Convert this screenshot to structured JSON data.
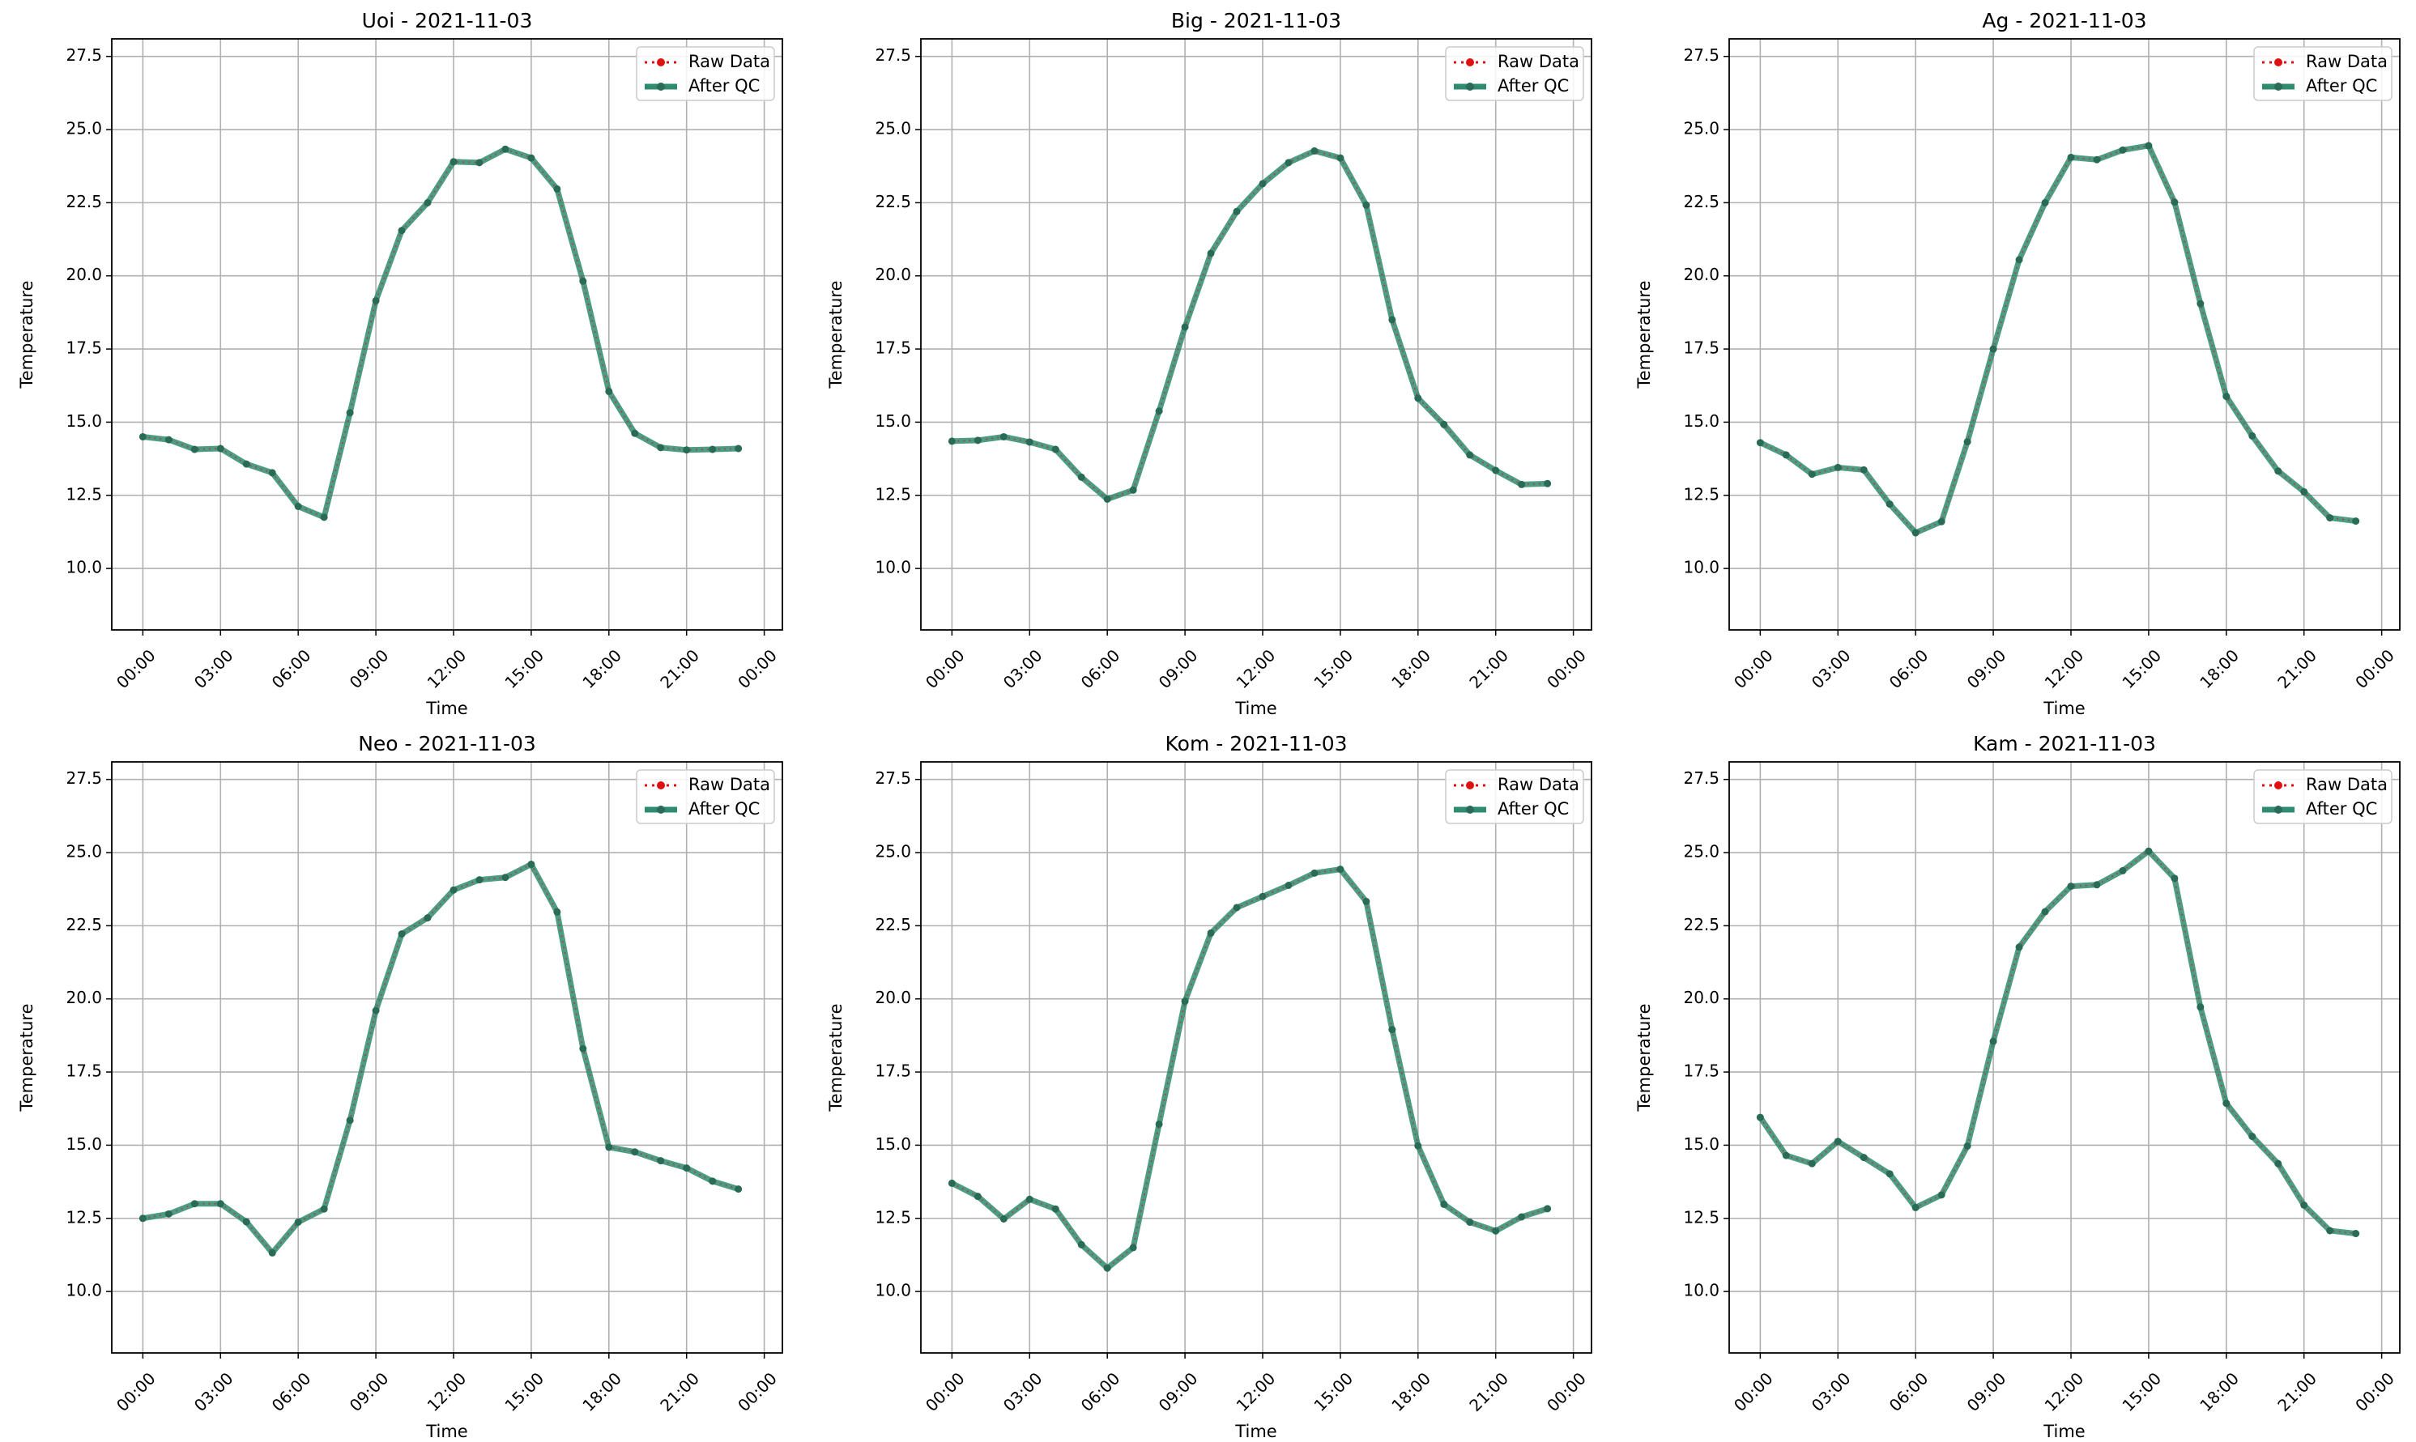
{
  "figure": {
    "background": "#ffffff"
  },
  "legend": {
    "raw_label": "Raw Data",
    "qc_label": "After QC",
    "raw_color": "#e01010",
    "qc_color": "#2e8b6f"
  },
  "chart_data": [
    {
      "type": "line",
      "title": "Uoi - 2021-11-03",
      "xlabel": "Time",
      "ylabel": "Temperature",
      "xticks": [
        "00:00",
        "03:00",
        "06:00",
        "09:00",
        "12:00",
        "15:00",
        "18:00",
        "21:00",
        "00:00"
      ],
      "yticks": [
        "10.0",
        "12.5",
        "15.0",
        "17.5",
        "20.0",
        "22.5",
        "25.0",
        "27.5"
      ],
      "ylim": [
        7.9,
        28.1
      ],
      "grid": true,
      "legend_position": "upper right",
      "x_hours": [
        0,
        1,
        2,
        3,
        4,
        5,
        6,
        7,
        8,
        9,
        10,
        11,
        12,
        13,
        14,
        15,
        16,
        17,
        18,
        19,
        20,
        21,
        22,
        23
      ],
      "series": [
        {
          "name": "Raw Data",
          "values": [
            14.5,
            14.4,
            14.07,
            14.1,
            13.57,
            13.27,
            12.12,
            11.75,
            15.32,
            19.15,
            21.55,
            22.5,
            23.9,
            23.87,
            24.33,
            24.03,
            22.97,
            19.82,
            16.05,
            14.62,
            14.13,
            14.05,
            14.07,
            14.1
          ]
        },
        {
          "name": "After QC",
          "values": [
            14.5,
            14.4,
            14.07,
            14.1,
            13.57,
            13.27,
            12.12,
            11.75,
            15.32,
            19.15,
            21.55,
            22.5,
            23.9,
            23.87,
            24.33,
            24.03,
            22.97,
            19.82,
            16.05,
            14.62,
            14.13,
            14.05,
            14.07,
            14.1
          ]
        }
      ]
    },
    {
      "type": "line",
      "title": "Big - 2021-11-03",
      "xlabel": "Time",
      "ylabel": "Temperature",
      "xticks": [
        "00:00",
        "03:00",
        "06:00",
        "09:00",
        "12:00",
        "15:00",
        "18:00",
        "21:00",
        "00:00"
      ],
      "yticks": [
        "10.0",
        "12.5",
        "15.0",
        "17.5",
        "20.0",
        "22.5",
        "25.0",
        "27.5"
      ],
      "ylim": [
        7.9,
        28.1
      ],
      "grid": true,
      "legend_position": "upper right",
      "x_hours": [
        0,
        1,
        2,
        3,
        4,
        5,
        6,
        7,
        8,
        9,
        10,
        11,
        12,
        13,
        14,
        15,
        16,
        17,
        18,
        19,
        20,
        21,
        22,
        23
      ],
      "series": [
        {
          "name": "Raw Data",
          "values": [
            14.35,
            14.38,
            14.5,
            14.32,
            14.07,
            13.12,
            12.37,
            12.68,
            15.38,
            18.25,
            20.77,
            22.2,
            23.15,
            23.87,
            24.27,
            24.03,
            22.42,
            18.5,
            15.82,
            14.92,
            13.88,
            13.35,
            12.87,
            12.9
          ]
        },
        {
          "name": "After QC",
          "values": [
            14.35,
            14.38,
            14.5,
            14.32,
            14.07,
            13.12,
            12.37,
            12.68,
            15.38,
            18.25,
            20.77,
            22.2,
            23.15,
            23.87,
            24.27,
            24.03,
            22.42,
            18.5,
            15.82,
            14.92,
            13.88,
            13.35,
            12.87,
            12.9
          ]
        }
      ]
    },
    {
      "type": "line",
      "title": "Ag - 2021-11-03",
      "xlabel": "Time",
      "ylabel": "Temperature",
      "xticks": [
        "00:00",
        "03:00",
        "06:00",
        "09:00",
        "12:00",
        "15:00",
        "18:00",
        "21:00",
        "00:00"
      ],
      "yticks": [
        "10.0",
        "12.5",
        "15.0",
        "17.5",
        "20.0",
        "22.5",
        "25.0",
        "27.5"
      ],
      "ylim": [
        7.9,
        28.1
      ],
      "grid": true,
      "legend_position": "upper right",
      "x_hours": [
        0,
        1,
        2,
        3,
        4,
        5,
        6,
        7,
        8,
        9,
        10,
        11,
        12,
        13,
        14,
        15,
        16,
        17,
        18,
        19,
        20,
        21,
        22,
        23
      ],
      "series": [
        {
          "name": "Raw Data",
          "values": [
            14.3,
            13.88,
            13.22,
            13.45,
            13.37,
            12.2,
            11.22,
            11.6,
            14.33,
            17.5,
            20.55,
            22.5,
            24.05,
            23.97,
            24.3,
            24.45,
            22.52,
            19.05,
            15.88,
            14.53,
            13.33,
            12.62,
            11.73,
            11.62
          ]
        },
        {
          "name": "After QC",
          "values": [
            14.3,
            13.88,
            13.22,
            13.45,
            13.37,
            12.2,
            11.22,
            11.6,
            14.33,
            17.5,
            20.55,
            22.5,
            24.05,
            23.97,
            24.3,
            24.45,
            22.52,
            19.05,
            15.88,
            14.53,
            13.33,
            12.62,
            11.73,
            11.62
          ]
        }
      ]
    },
    {
      "type": "line",
      "title": "Neo - 2021-11-03",
      "xlabel": "Time",
      "ylabel": "Temperature",
      "xticks": [
        "00:00",
        "03:00",
        "06:00",
        "09:00",
        "12:00",
        "15:00",
        "18:00",
        "21:00",
        "00:00"
      ],
      "yticks": [
        "10.0",
        "12.5",
        "15.0",
        "17.5",
        "20.0",
        "22.5",
        "25.0",
        "27.5"
      ],
      "ylim": [
        7.9,
        28.1
      ],
      "grid": true,
      "legend_position": "upper right",
      "x_hours": [
        0,
        1,
        2,
        3,
        4,
        5,
        6,
        7,
        8,
        9,
        10,
        11,
        12,
        13,
        14,
        15,
        16,
        17,
        18,
        19,
        20,
        21,
        22,
        23
      ],
      "series": [
        {
          "name": "Raw Data",
          "values": [
            12.5,
            12.65,
            13.0,
            13.0,
            12.38,
            11.32,
            12.37,
            12.82,
            15.85,
            19.6,
            22.22,
            22.77,
            23.72,
            24.07,
            24.15,
            24.6,
            22.97,
            18.3,
            14.93,
            14.77,
            14.47,
            14.22,
            13.77,
            13.5
          ]
        },
        {
          "name": "After QC",
          "values": [
            12.5,
            12.65,
            13.0,
            13.0,
            12.38,
            11.32,
            12.37,
            12.82,
            15.85,
            19.6,
            22.22,
            22.77,
            23.72,
            24.07,
            24.15,
            24.6,
            22.97,
            18.3,
            14.93,
            14.77,
            14.47,
            14.22,
            13.77,
            13.5
          ]
        }
      ]
    },
    {
      "type": "line",
      "title": "Kom - 2021-11-03",
      "xlabel": "Time",
      "ylabel": "Temperature",
      "xticks": [
        "00:00",
        "03:00",
        "06:00",
        "09:00",
        "12:00",
        "15:00",
        "18:00",
        "21:00",
        "00:00"
      ],
      "yticks": [
        "10.0",
        "12.5",
        "15.0",
        "17.5",
        "20.0",
        "22.5",
        "25.0",
        "27.5"
      ],
      "ylim": [
        7.9,
        28.1
      ],
      "grid": true,
      "legend_position": "upper right",
      "x_hours": [
        0,
        1,
        2,
        3,
        4,
        5,
        6,
        7,
        8,
        9,
        10,
        11,
        12,
        13,
        14,
        15,
        16,
        17,
        18,
        19,
        20,
        21,
        22,
        23
      ],
      "series": [
        {
          "name": "Raw Data",
          "values": [
            13.7,
            13.25,
            12.48,
            13.15,
            12.82,
            11.6,
            10.8,
            11.5,
            15.72,
            19.92,
            22.25,
            23.12,
            23.5,
            23.88,
            24.3,
            24.43,
            23.33,
            18.95,
            14.98,
            12.98,
            12.37,
            12.07,
            12.55,
            12.83
          ]
        },
        {
          "name": "After QC",
          "values": [
            13.7,
            13.25,
            12.48,
            13.15,
            12.82,
            11.6,
            10.8,
            11.5,
            15.72,
            19.92,
            22.25,
            23.12,
            23.5,
            23.88,
            24.3,
            24.43,
            23.33,
            18.95,
            14.98,
            12.98,
            12.37,
            12.07,
            12.55,
            12.83
          ]
        }
      ]
    },
    {
      "type": "line",
      "title": "Kam - 2021-11-03",
      "xlabel": "Time",
      "ylabel": "Temperature",
      "xticks": [
        "00:00",
        "03:00",
        "06:00",
        "09:00",
        "12:00",
        "15:00",
        "18:00",
        "21:00",
        "00:00"
      ],
      "yticks": [
        "10.0",
        "12.5",
        "15.0",
        "17.5",
        "20.0",
        "22.5",
        "25.0",
        "27.5"
      ],
      "ylim": [
        7.9,
        28.1
      ],
      "grid": true,
      "legend_position": "upper right",
      "x_hours": [
        0,
        1,
        2,
        3,
        4,
        5,
        6,
        7,
        8,
        9,
        10,
        11,
        12,
        13,
        14,
        15,
        16,
        17,
        18,
        19,
        20,
        21,
        22,
        23
      ],
      "series": [
        {
          "name": "Raw Data",
          "values": [
            15.95,
            14.65,
            14.37,
            15.13,
            14.58,
            14.02,
            12.87,
            13.3,
            14.97,
            18.55,
            21.77,
            22.98,
            23.85,
            23.9,
            24.38,
            25.05,
            24.12,
            19.72,
            16.43,
            15.3,
            14.37,
            12.95,
            12.08,
            11.98
          ]
        },
        {
          "name": "After QC",
          "values": [
            15.95,
            14.65,
            14.37,
            15.13,
            14.58,
            14.02,
            12.87,
            13.3,
            14.97,
            18.55,
            21.77,
            22.98,
            23.85,
            23.9,
            24.38,
            25.05,
            24.12,
            19.72,
            16.43,
            15.3,
            14.37,
            12.95,
            12.08,
            11.98
          ]
        }
      ]
    }
  ]
}
